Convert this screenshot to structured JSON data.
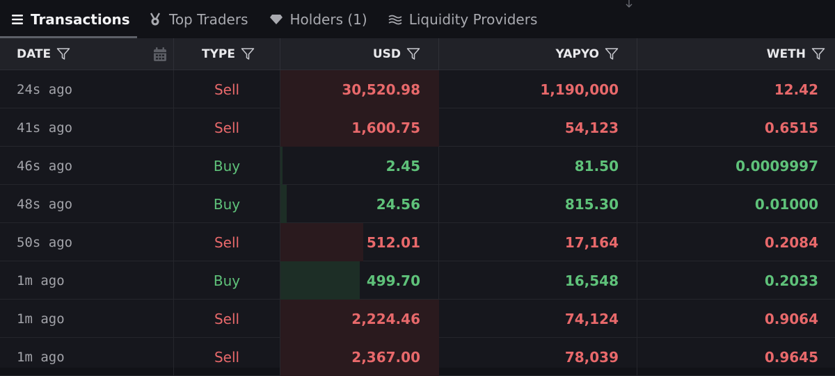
{
  "tabs": [
    {
      "label": "Transactions",
      "icon": "list-icon",
      "active": true
    },
    {
      "label": "Top Traders",
      "icon": "medal-icon",
      "active": false
    },
    {
      "label": "Holders (1)",
      "icon": "diamond-icon",
      "active": false
    },
    {
      "label": "Liquidity Providers",
      "icon": "waves-icon",
      "active": false
    }
  ],
  "columns": {
    "date": "DATE",
    "type": "TYPE",
    "usd": "USD",
    "yapyo": "YAPYO",
    "weth": "WETH"
  },
  "colors": {
    "sell": "#e8696b",
    "buy": "#5fc27a",
    "sell_bar": "#2a1a1e",
    "buy_bar": "#1d2e26"
  },
  "rows": [
    {
      "date": "24s ago",
      "type": "Sell",
      "usd": "30,520.98",
      "yapyo": "1,190,000",
      "weth": "12.42",
      "usd_bar_fraction": 1.0
    },
    {
      "date": "41s ago",
      "type": "Sell",
      "usd": "1,600.75",
      "yapyo": "54,123",
      "weth": "0.6515",
      "usd_bar_fraction": 1.0
    },
    {
      "date": "46s ago",
      "type": "Buy",
      "usd": "2.45",
      "yapyo": "81.50",
      "weth": "0.0009997",
      "usd_bar_fraction": 0.01
    },
    {
      "date": "48s ago",
      "type": "Buy",
      "usd": "24.56",
      "yapyo": "815.30",
      "weth": "0.01000",
      "usd_bar_fraction": 0.04
    },
    {
      "date": "50s ago",
      "type": "Sell",
      "usd": "512.01",
      "yapyo": "17,164",
      "weth": "0.2084",
      "usd_bar_fraction": 0.52
    },
    {
      "date": "1m ago",
      "type": "Buy",
      "usd": "499.70",
      "yapyo": "16,548",
      "weth": "0.2033",
      "usd_bar_fraction": 0.5
    },
    {
      "date": "1m ago",
      "type": "Sell",
      "usd": "2,224.46",
      "yapyo": "74,124",
      "weth": "0.9064",
      "usd_bar_fraction": 1.0
    },
    {
      "date": "1m ago",
      "type": "Sell",
      "usd": "2,367.00",
      "yapyo": "78,039",
      "weth": "0.9645",
      "usd_bar_fraction": 1.0
    }
  ]
}
